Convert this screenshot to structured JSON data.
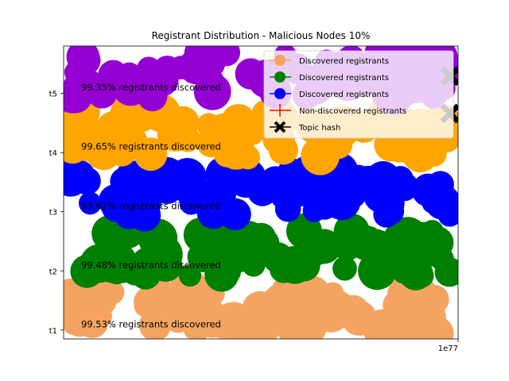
{
  "chart_data": {
    "type": "scatter",
    "title": "Registrant Distribution - Malicious Nodes 10%",
    "x_offset_label": "1e77",
    "y_categories": [
      "t1",
      "t2",
      "t3",
      "t4",
      "t5"
    ],
    "ylim": [
      0.85,
      5.8
    ],
    "series": [
      {
        "name": "Discovered registrants",
        "color": "#f4a460",
        "category": "t1",
        "discovered_label": "99.53% registrants discovered"
      },
      {
        "name": "Discovered registrants",
        "color": "#008000",
        "category": "t2",
        "discovered_label": "99.48% registrants discovered"
      },
      {
        "name": "Discovered registrants",
        "color": "#0000ff",
        "category": "t3",
        "discovered_label": "99.62% registrants discovered"
      },
      {
        "name": "Discovered registrants",
        "color": "#ffa500",
        "category": "t4",
        "discovered_label": "99.65% registrants discovered"
      },
      {
        "name": "Discovered registrants",
        "color": "#9400d3",
        "category": "t5",
        "discovered_label": "99.35% registrants discovered"
      }
    ],
    "legend": {
      "placement": "top-right",
      "entries": [
        {
          "label": "Discovered registrants",
          "color": "#f4a460",
          "marker": "circle"
        },
        {
          "label": "Discovered registrants",
          "color": "#008000",
          "marker": "circle"
        },
        {
          "label": "Discovered registrants",
          "color": "#0000ff",
          "marker": "circle"
        },
        {
          "label": "Non-discovered registrants",
          "color": "#ff0000",
          "marker": "plus"
        },
        {
          "label": "Topic hash",
          "color": "#000000",
          "marker": "x"
        }
      ]
    }
  }
}
